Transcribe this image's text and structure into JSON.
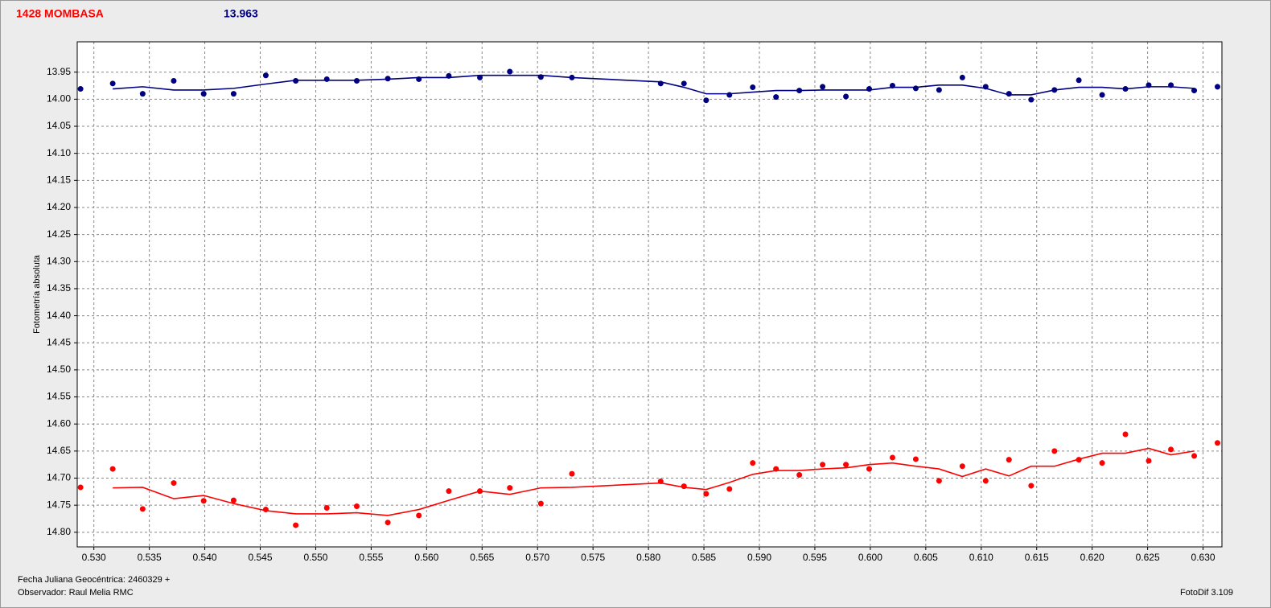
{
  "chart_data": {
    "type": "scatter",
    "title": "1428 MOMBASA",
    "annotations": [
      "13.963",
      "Observador: Raul Melia RMC",
      "FotoDif 3.109"
    ],
    "xlabel": "Fecha Juliana Geocéntrica: 2460329 +",
    "ylabel": "Fotometría absoluta",
    "x": [
      0.5288,
      0.5317,
      0.5344,
      0.5372,
      0.5399,
      0.5426,
      0.5455,
      0.5482,
      0.551,
      0.5537,
      0.5565,
      0.5593,
      0.562,
      0.5648,
      0.5675,
      0.5703,
      0.5731,
      0.5811,
      0.5832,
      0.5852,
      0.5873,
      0.5894,
      0.5915,
      0.5936,
      0.5957,
      0.5978,
      0.5999,
      0.602,
      0.6041,
      0.6062,
      0.6083,
      0.6104,
      0.6125,
      0.6145,
      0.6166,
      0.6188,
      0.6209,
      0.623,
      0.6251,
      0.6271,
      0.6292,
      0.6313
    ],
    "series": [
      {
        "style": "points",
        "color": "#000080",
        "values": [
          13.981,
          13.971,
          13.99,
          13.966,
          13.99,
          13.99,
          13.956,
          13.966,
          13.963,
          13.966,
          13.962,
          13.963,
          13.957,
          13.96,
          13.949,
          13.959,
          13.96,
          13.971,
          13.971,
          14.002,
          13.992,
          13.978,
          13.996,
          13.984,
          13.977,
          13.995,
          13.981,
          13.975,
          13.98,
          13.983,
          13.96,
          13.977,
          13.99,
          14.001,
          13.983,
          13.965,
          13.992,
          13.981,
          13.974,
          13.974,
          13.984,
          13.977
        ]
      },
      {
        "style": "line",
        "color": "#000080",
        "values": [
          null,
          13.981,
          13.977,
          13.983,
          13.983,
          13.98,
          13.972,
          13.965,
          13.965,
          13.965,
          13.963,
          13.96,
          13.96,
          13.956,
          13.956,
          13.956,
          13.96,
          13.968,
          13.978,
          13.99,
          13.99,
          13.987,
          13.984,
          13.984,
          13.983,
          13.983,
          13.983,
          13.978,
          13.978,
          13.974,
          13.974,
          13.98,
          13.992,
          13.992,
          13.983,
          13.978,
          13.978,
          13.981,
          13.977,
          13.977,
          13.98,
          null
        ]
      },
      {
        "style": "points",
        "color": "#ff0000",
        "values": [
          14.717,
          14.683,
          14.757,
          14.709,
          14.742,
          14.741,
          14.758,
          14.787,
          14.755,
          14.752,
          14.782,
          14.769,
          14.724,
          14.724,
          14.718,
          14.747,
          14.692,
          14.706,
          14.715,
          14.729,
          14.72,
          14.672,
          14.683,
          14.694,
          14.675,
          14.675,
          14.683,
          14.662,
          14.665,
          14.705,
          14.678,
          14.705,
          14.666,
          14.714,
          14.65,
          14.666,
          14.672,
          14.619,
          14.668,
          14.647,
          14.659,
          14.635
        ]
      },
      {
        "style": "line",
        "color": "#ff0000",
        "values": [
          null,
          14.718,
          14.717,
          14.738,
          14.732,
          14.747,
          14.76,
          14.766,
          14.766,
          14.764,
          14.769,
          14.758,
          14.741,
          14.724,
          14.73,
          14.718,
          14.717,
          14.709,
          14.717,
          14.721,
          14.708,
          14.693,
          14.686,
          14.686,
          14.683,
          14.681,
          14.675,
          14.672,
          14.678,
          14.683,
          14.697,
          14.683,
          14.696,
          14.678,
          14.678,
          14.665,
          14.654,
          14.654,
          14.645,
          14.657,
          14.65,
          null
        ]
      }
    ],
    "xlim": [
      0.5285,
      0.6317
    ],
    "ylim": [
      13.894,
      14.827
    ],
    "y_inverted": true,
    "grid": true,
    "xticks": [
      {
        "value": 0.53,
        "label": "0.530"
      },
      0.535,
      {
        "value": 0.54,
        "label": "0.540"
      },
      0.545,
      {
        "value": 0.55,
        "label": "0.550"
      },
      0.555,
      {
        "value": 0.56,
        "label": "0.560"
      },
      0.565,
      {
        "value": 0.57,
        "label": "0.570"
      },
      0.575,
      {
        "value": 0.58,
        "label": "0.580"
      },
      0.585,
      {
        "value": 0.59,
        "label": "0.590"
      },
      0.595,
      {
        "value": 0.6,
        "label": "0.600"
      },
      0.605,
      {
        "value": 0.61,
        "label": "0.610"
      },
      0.615,
      {
        "value": 0.62,
        "label": "0.620"
      },
      0.625,
      {
        "value": 0.63,
        "label": "0.630"
      }
    ],
    "yticks": [
      13.95,
      {
        "value": 14.0,
        "label": "14.00"
      },
      14.05,
      {
        "value": 14.1,
        "label": "14.10"
      },
      14.15,
      {
        "value": 14.2,
        "label": "14.20"
      },
      14.25,
      {
        "value": 14.3,
        "label": "14.30"
      },
      14.35,
      {
        "value": 14.4,
        "label": "14.40"
      },
      14.45,
      {
        "value": 14.5,
        "label": "14.50"
      },
      14.55,
      {
        "value": 14.6,
        "label": "14.60"
      },
      14.65,
      {
        "value": 14.7,
        "label": "14.70"
      },
      14.75,
      {
        "value": 14.8,
        "label": "14.80"
      }
    ]
  }
}
